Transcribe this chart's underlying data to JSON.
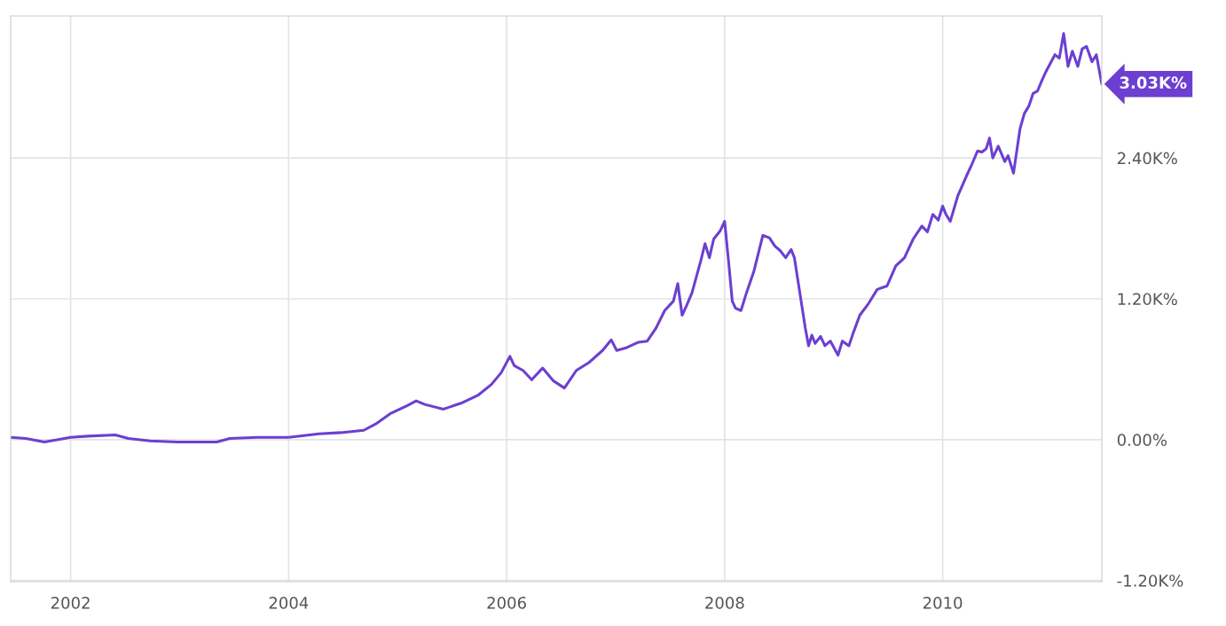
{
  "chart_data": {
    "type": "line",
    "x": [
      2001.45,
      2001.59,
      2001.76,
      2002.0,
      2002.16,
      2002.41,
      2002.53,
      2002.73,
      2002.98,
      2003.34,
      2003.46,
      2003.71,
      2004.0,
      2004.28,
      2004.48,
      2004.69,
      2004.81,
      2004.93,
      2005.09,
      2005.17,
      2005.25,
      2005.42,
      2005.58,
      2005.74,
      2005.86,
      2005.95,
      2006.03,
      2006.07,
      2006.15,
      2006.23,
      2006.33,
      2006.43,
      2006.53,
      2006.64,
      2006.76,
      2006.88,
      2006.96,
      2007.01,
      2007.09,
      2007.21,
      2007.29,
      2007.37,
      2007.45,
      2007.53,
      2007.57,
      2007.61,
      2007.65,
      2007.7,
      2007.78,
      2007.82,
      2007.86,
      2007.9,
      2007.96,
      2008.0,
      2008.04,
      2008.07,
      2008.1,
      2008.15,
      2008.2,
      2008.27,
      2008.31,
      2008.35,
      2008.41,
      2008.46,
      2008.51,
      2008.56,
      2008.61,
      2008.64,
      2008.69,
      2008.74,
      2008.77,
      2008.8,
      2008.83,
      2008.88,
      2008.92,
      2008.97,
      2009.04,
      2009.08,
      2009.14,
      2009.18,
      2009.24,
      2009.32,
      2009.4,
      2009.49,
      2009.57,
      2009.65,
      2009.73,
      2009.81,
      2009.86,
      2009.91,
      2009.96,
      2010.0,
      2010.03,
      2010.07,
      2010.14,
      2010.22,
      2010.27,
      2010.32,
      2010.36,
      2010.4,
      2010.43,
      2010.46,
      2010.51,
      2010.57,
      2010.6,
      2010.65,
      2010.71,
      2010.75,
      2010.79,
      2010.83,
      2010.87,
      2010.91,
      2010.95,
      2011.03,
      2011.07,
      2011.11,
      2011.15,
      2011.19,
      2011.24,
      2011.28,
      2011.32,
      2011.37,
      2011.41,
      2011.46
    ],
    "series": [
      {
        "color": "#6c3fd1",
        "values": [
          20,
          10,
          -20,
          20,
          30,
          40,
          10,
          -10,
          -20,
          -20,
          10,
          20,
          20,
          50,
          60,
          80,
          140,
          220,
          290,
          330,
          300,
          260,
          310,
          380,
          470,
          570,
          710,
          630,
          590,
          510,
          610,
          500,
          440,
          590,
          660,
          760,
          850,
          760,
          780,
          830,
          840,
          950,
          1100,
          1180,
          1330,
          1060,
          1140,
          1250,
          1520,
          1670,
          1550,
          1710,
          1780,
          1860,
          1480,
          1180,
          1120,
          1100,
          1250,
          1440,
          1590,
          1740,
          1720,
          1650,
          1610,
          1550,
          1620,
          1550,
          1250,
          950,
          800,
          890,
          820,
          880,
          800,
          840,
          720,
          840,
          800,
          910,
          1060,
          1160,
          1280,
          1310,
          1480,
          1550,
          1710,
          1820,
          1770,
          1920,
          1870,
          1990,
          1920,
          1860,
          2080,
          2250,
          2350,
          2460,
          2450,
          2480,
          2570,
          2400,
          2500,
          2370,
          2420,
          2270,
          2650,
          2780,
          2840,
          2950,
          2970,
          3060,
          3140,
          3280,
          3250,
          3460,
          3180,
          3310,
          3180,
          3330,
          3350,
          3220,
          3280,
          3030
        ]
      }
    ],
    "xlim": [
      2001.45,
      2011.46
    ],
    "ylim": [
      -1210,
      3610
    ],
    "xticks": [
      2002,
      2004,
      2006,
      2008,
      2010
    ],
    "yticks": [
      {
        "value": -1200,
        "label": "-1.20K%"
      },
      {
        "value": 0,
        "label": "0.00%"
      },
      {
        "value": 1200,
        "label": "1.20K%"
      },
      {
        "value": 2400,
        "label": "2.40K%"
      }
    ],
    "grid": true,
    "marker": "none",
    "line_style": "solid",
    "annotations": [
      {
        "text": "3.03K%",
        "x": 2011.46,
        "y": 3030
      }
    ]
  }
}
